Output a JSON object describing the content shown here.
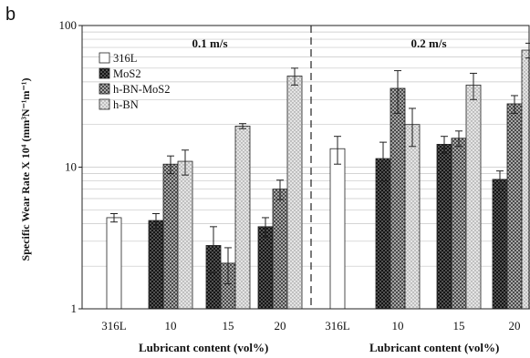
{
  "panel_label": "b",
  "chart_data": {
    "type": "bar",
    "ylabel": "Specific Wear Rate  X 10⁴ (mm³N⁻¹m⁻¹)",
    "yscale": "log",
    "ylim": [
      1,
      100
    ],
    "yticks": [
      "1",
      "10",
      "100"
    ],
    "grid": true,
    "legend_position": "top-left",
    "series": [
      {
        "name": "316L",
        "color": "#ffffff",
        "pattern": "none"
      },
      {
        "name": "MoS2",
        "color": "#1a1a1a",
        "pattern": "dark-dots"
      },
      {
        "name": "h-BN-MoS2",
        "color": "#6a6a6a",
        "pattern": "checker"
      },
      {
        "name": "h-BN",
        "color": "#d0d0d0",
        "pattern": "light-dots"
      }
    ],
    "panels": [
      {
        "speed_label": "0.1 m/s",
        "xlabel": "Lubricant content (vol%)",
        "groups": [
          {
            "category": "316L",
            "bars": [
              {
                "series": "316L",
                "value": 4.4,
                "err": 0.3
              }
            ]
          },
          {
            "category": "10",
            "bars": [
              {
                "series": "MoS2",
                "value": 4.2,
                "err": 0.5
              },
              {
                "series": "h-BN-MoS2",
                "value": 10.5,
                "err": 1.5
              },
              {
                "series": "h-BN",
                "value": 11.0,
                "err": 2.2
              }
            ]
          },
          {
            "category": "15",
            "bars": [
              {
                "series": "MoS2",
                "value": 2.8,
                "err": 1.0
              },
              {
                "series": "h-BN-MoS2",
                "value": 2.1,
                "err": 0.6
              },
              {
                "series": "h-BN",
                "value": 19.5,
                "err": 0.8
              }
            ]
          },
          {
            "category": "20",
            "bars": [
              {
                "series": "MoS2",
                "value": 3.8,
                "err": 0.6
              },
              {
                "series": "h-BN-MoS2",
                "value": 7.0,
                "err": 1.1
              },
              {
                "series": "h-BN",
                "value": 44.0,
                "err": 6.0
              }
            ]
          }
        ]
      },
      {
        "speed_label": "0.2 m/s",
        "xlabel": "Lubricant content (vol%)",
        "groups": [
          {
            "category": "316L",
            "bars": [
              {
                "series": "316L",
                "value": 13.5,
                "err": 3.0
              }
            ]
          },
          {
            "category": "10",
            "bars": [
              {
                "series": "MoS2",
                "value": 11.5,
                "err": 3.5
              },
              {
                "series": "h-BN-MoS2",
                "value": 36.0,
                "err": 12.0
              },
              {
                "series": "h-BN",
                "value": 20.0,
                "err": 6.0
              }
            ]
          },
          {
            "category": "15",
            "bars": [
              {
                "series": "MoS2",
                "value": 14.5,
                "err": 2.0
              },
              {
                "series": "h-BN-MoS2",
                "value": 16.0,
                "err": 2.0
              },
              {
                "series": "h-BN",
                "value": 38.0,
                "err": 8.0
              }
            ]
          },
          {
            "category": "20",
            "bars": [
              {
                "series": "MoS2",
                "value": 8.2,
                "err": 1.2
              },
              {
                "series": "h-BN-MoS2",
                "value": 28.0,
                "err": 4.0
              },
              {
                "series": "h-BN",
                "value": 67.0,
                "err": 8.0
              }
            ]
          }
        ]
      }
    ]
  }
}
